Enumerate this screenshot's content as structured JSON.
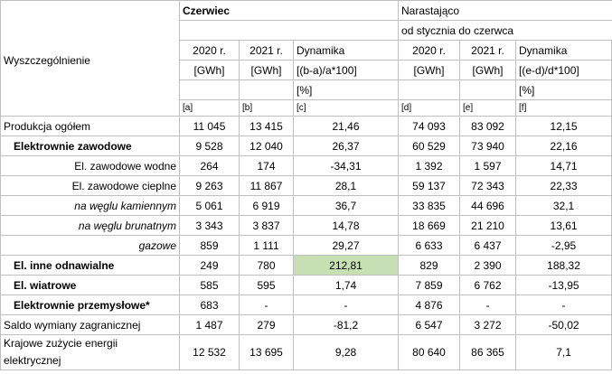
{
  "header": {
    "row_label": "Wyszczególnienie",
    "group1_title": "Czerwiec",
    "group2_title_line1": "Narastająco",
    "group2_title_line2": "od stycznia do czerwca",
    "col_a": {
      "year": "2020 r.",
      "unit": "[GWh]",
      "letter": "[a]"
    },
    "col_b": {
      "year": "2021 r.",
      "unit": "[GWh]",
      "letter": "[b]"
    },
    "col_c": {
      "label": "Dynamika",
      "formula": "[(b-a)/a*100]",
      "unit": "[%]",
      "letter": "[c]"
    },
    "col_d": {
      "year": "2020 r.",
      "unit": "[GWh]",
      "letter": "[d]"
    },
    "col_e": {
      "year": "2021 r.",
      "unit": "[GWh]",
      "letter": "[e]"
    },
    "col_f": {
      "label": "Dynamika",
      "formula": "[(e-d)/d*100]",
      "unit": "[%]",
      "letter": "[f]"
    }
  },
  "rows": [
    {
      "label": "Produkcja ogółem",
      "a": "11 045",
      "b": "13 415",
      "c": "21,46",
      "d": "74 093",
      "e": "83 092",
      "f": "12,15"
    },
    {
      "label": "Elektrownie zawodowe",
      "a": "9 528",
      "b": "12 040",
      "c": "26,37",
      "d": "60 529",
      "e": "73 940",
      "f": "22,16"
    },
    {
      "label": "El. zawodowe wodne",
      "a": "264",
      "b": "174",
      "c": "-34,31",
      "d": "1 392",
      "e": "1 597",
      "f": "14,71"
    },
    {
      "label": "El. zawodowe cieplne",
      "a": "9 263",
      "b": "11 867",
      "c": "28,1",
      "d": "59 137",
      "e": "72 343",
      "f": "22,33"
    },
    {
      "label": "na węglu kamiennym",
      "a": "5 061",
      "b": "6 919",
      "c": "36,7",
      "d": "33 835",
      "e": "44 696",
      "f": "32,1"
    },
    {
      "label": "na węglu brunatnym",
      "a": "3 343",
      "b": "3 837",
      "c": "14,78",
      "d": "18 669",
      "e": "21 210",
      "f": "13,61"
    },
    {
      "label": "gazowe",
      "a": "859",
      "b": "1 111",
      "c": "29,27",
      "d": "6 633",
      "e": "6 437",
      "f": "-2,95"
    },
    {
      "label": "El. inne odnawialne",
      "a": "249",
      "b": "780",
      "c": "212,81",
      "d": "829",
      "e": "2 390",
      "f": "188,32"
    },
    {
      "label": "El. wiatrowe",
      "a": "585",
      "b": "595",
      "c": "1,74",
      "d": "7 859",
      "e": "6 762",
      "f": "-13,95"
    },
    {
      "label": "Elektrownie przemysłowe*",
      "a": "683",
      "b": "-",
      "c": "-",
      "d": "4 876",
      "e": "-",
      "f": "-"
    },
    {
      "label": "Saldo wymiany zagranicznej",
      "a": "1 487",
      "b": "279",
      "c": "-81,2",
      "d": "6 547",
      "e": "3 272",
      "f": "-50,02"
    },
    {
      "label": "Krajowe zużycie energii elektrycznej",
      "a": "12 532",
      "b": "13 695",
      "c": "9,28",
      "d": "80 640",
      "e": "86 365",
      "f": "7,1"
    }
  ],
  "highlight_color": "#c6e0b4"
}
